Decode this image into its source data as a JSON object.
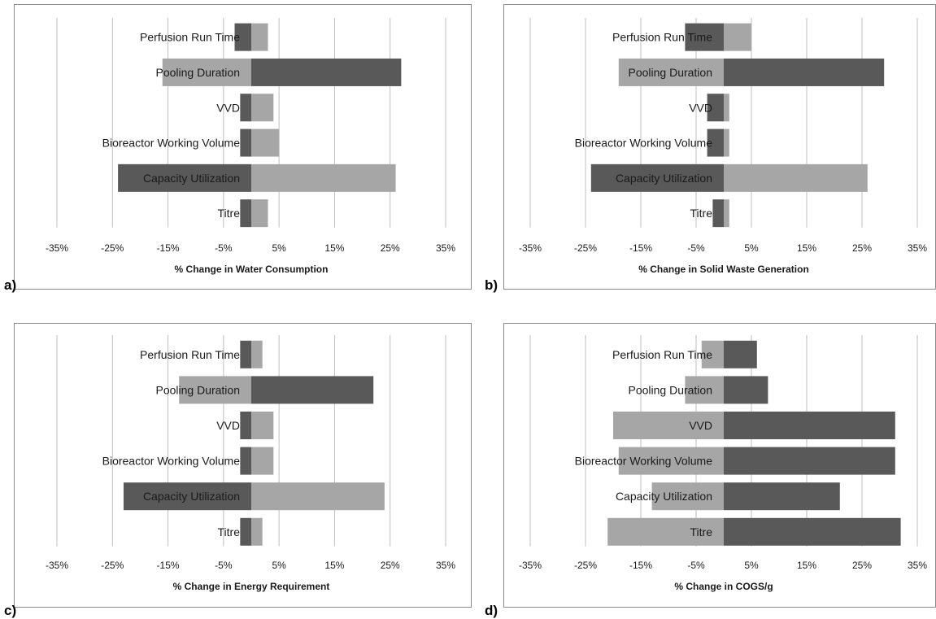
{
  "colors": {
    "dark": "#595959",
    "light": "#a6a6a6",
    "grid": "#bfbfbf",
    "border": "#8c8c8c"
  },
  "chart_data": [
    {
      "panel": "a)",
      "type": "bar",
      "orientation": "horizontal",
      "xlabel": "% Change in Water Consumption",
      "xlim": [
        -35,
        35
      ],
      "xticks": [
        "-35%",
        "-25%",
        "-15%",
        "-5%",
        "5%",
        "15%",
        "25%",
        "35%"
      ],
      "xtick_values": [
        -35,
        -25,
        -15,
        -5,
        5,
        15,
        25,
        35
      ],
      "categories": [
        "Perfusion Run Time",
        "Pooling Duration",
        "VVD",
        "Bioreactor Working Volume",
        "Capacity Utilization",
        "Titre"
      ],
      "series": [
        {
          "color": "dark",
          "values": [
            -3,
            27,
            -2,
            -2,
            -24,
            -2
          ]
        },
        {
          "color": "light",
          "values": [
            3,
            -16,
            4,
            5,
            26,
            3
          ]
        }
      ],
      "grid": true
    },
    {
      "panel": "b)",
      "type": "bar",
      "orientation": "horizontal",
      "xlabel": "% Change in Solid Waste Generation",
      "xlim": [
        -35,
        35
      ],
      "xticks": [
        "-35%",
        "-25%",
        "-15%",
        "-5%",
        "5%",
        "15%",
        "25%",
        "35%"
      ],
      "xtick_values": [
        -35,
        -25,
        -15,
        -5,
        5,
        15,
        25,
        35
      ],
      "categories": [
        "Perfusion Run Time",
        "Pooling Duration",
        "VVD",
        "Bioreactor Working Volume",
        "Capacity Utilization",
        "Titre"
      ],
      "series": [
        {
          "color": "dark",
          "values": [
            -7,
            29,
            -3,
            -3,
            -24,
            -2
          ]
        },
        {
          "color": "light",
          "values": [
            5,
            -19,
            1,
            1,
            26,
            1
          ]
        }
      ],
      "grid": true
    },
    {
      "panel": "c)",
      "type": "bar",
      "orientation": "horizontal",
      "xlabel": "% Change in Energy Requirement",
      "xlim": [
        -35,
        35
      ],
      "xticks": [
        "-35%",
        "-25%",
        "-15%",
        "-5%",
        "5%",
        "15%",
        "25%",
        "35%"
      ],
      "xtick_values": [
        -35,
        -25,
        -15,
        -5,
        5,
        15,
        25,
        35
      ],
      "categories": [
        "Perfusion Run Time",
        "Pooling Duration",
        "VVD",
        "Bioreactor Working Volume",
        "Capacity Utilization",
        "Titre"
      ],
      "series": [
        {
          "color": "dark",
          "values": [
            -2,
            22,
            -2,
            -2,
            -23,
            -2
          ]
        },
        {
          "color": "light",
          "values": [
            2,
            -13,
            4,
            4,
            24,
            2
          ]
        }
      ],
      "grid": true
    },
    {
      "panel": "d)",
      "type": "bar",
      "orientation": "horizontal",
      "xlabel": "% Change in COGS/g",
      "xlim": [
        -35,
        35
      ],
      "xticks": [
        "-35%",
        "-25%",
        "-15%",
        "-5%",
        "5%",
        "15%",
        "25%",
        "35%"
      ],
      "xtick_values": [
        -35,
        -25,
        -15,
        -5,
        5,
        15,
        25,
        35
      ],
      "categories": [
        "Perfusion Run Time",
        "Pooling Duration",
        "VVD",
        "Bioreactor Working Volume",
        "Capacity Utilization",
        "Titre"
      ],
      "series": [
        {
          "color": "dark",
          "values": [
            6,
            8,
            31,
            31,
            21,
            32
          ]
        },
        {
          "color": "light",
          "values": [
            -4,
            -7,
            -20,
            -19,
            -13,
            -21
          ]
        }
      ],
      "grid": true
    }
  ]
}
